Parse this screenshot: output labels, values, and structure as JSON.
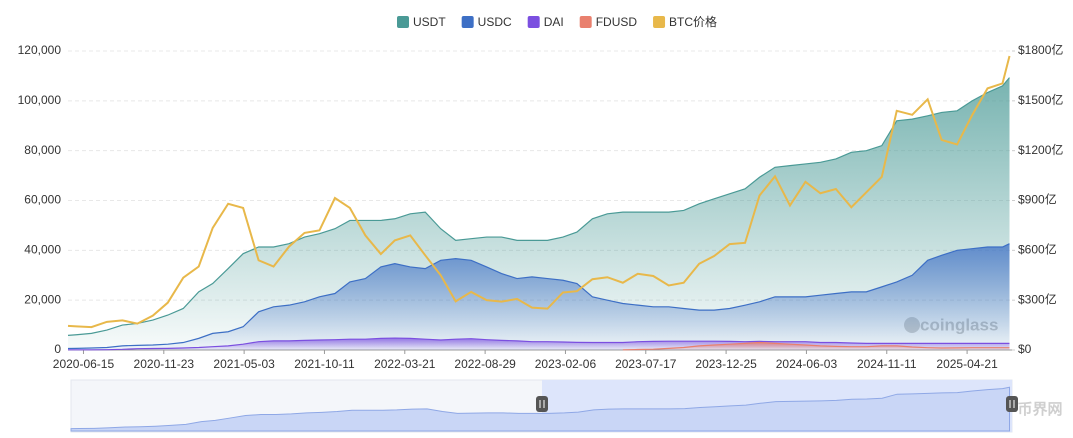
{
  "chart_data": {
    "type": "area",
    "watermark": "coinglass",
    "source_logo": "币界网",
    "x": [
      "2020-05-15",
      "2020-06-01",
      "2020-07-01",
      "2020-08-01",
      "2020-09-01",
      "2020-10-01",
      "2020-11-01",
      "2020-12-01",
      "2021-01-01",
      "2021-02-01",
      "2021-03-01",
      "2021-04-01",
      "2021-05-01",
      "2021-06-01",
      "2021-07-01",
      "2021-08-01",
      "2021-09-01",
      "2021-10-01",
      "2021-11-01",
      "2021-12-01",
      "2022-01-01",
      "2022-02-01",
      "2022-03-01",
      "2022-04-01",
      "2022-05-01",
      "2022-06-01",
      "2022-07-01",
      "2022-08-01",
      "2022-09-01",
      "2022-10-01",
      "2022-11-01",
      "2022-12-01",
      "2023-01-01",
      "2023-02-01",
      "2023-03-01",
      "2023-04-01",
      "2023-05-01",
      "2023-06-01",
      "2023-07-01",
      "2023-08-01",
      "2023-09-01",
      "2023-10-01",
      "2023-11-01",
      "2023-12-01",
      "2024-01-01",
      "2024-02-01",
      "2024-03-01",
      "2024-04-01",
      "2024-05-01",
      "2024-06-01",
      "2024-07-01",
      "2024-08-01",
      "2024-09-01",
      "2024-10-01",
      "2024-11-01",
      "2024-12-01",
      "2025-01-01",
      "2025-02-01",
      "2025-03-01",
      "2025-04-01",
      "2025-05-01",
      "2025-06-01",
      "2025-07-01",
      "2025-07-15"
    ],
    "xlim": [
      "2020-05-15",
      "2025-07-20"
    ],
    "xticks": [
      "2020-06-15",
      "2020-11-23",
      "2021-05-03",
      "2021-10-11",
      "2022-03-21",
      "2022-08-29",
      "2023-02-06",
      "2023-07-17",
      "2023-12-25",
      "2024-06-03",
      "2024-11-11",
      "2025-04-21"
    ],
    "ylim": [
      0,
      120000
    ],
    "yticks": [
      0,
      {
        "value": 20000,
        "label": "20,000"
      },
      {
        "value": 40000,
        "label": "40,000"
      },
      {
        "value": 60000,
        "label": "60,000"
      },
      {
        "value": 80000,
        "label": "80,000"
      },
      {
        "value": 100000,
        "label": "100,000"
      },
      {
        "value": 120000,
        "label": "120,000"
      }
    ],
    "y2lim": [
      0,
      1800
    ],
    "y2ticks": [
      {
        "value": 0,
        "label": "$0"
      },
      {
        "value": 300,
        "label": "$300亿"
      },
      {
        "value": 600,
        "label": "$600亿"
      },
      {
        "value": 900,
        "label": "$900亿"
      },
      {
        "value": 1200,
        "label": "$1200亿"
      },
      {
        "value": 1500,
        "label": "$1500亿"
      },
      {
        "value": 1800,
        "label": "$1800亿"
      }
    ],
    "grid": true,
    "legend": "top",
    "series": [
      {
        "name": "USDT",
        "color": "#4a9a96",
        "axis": "y2",
        "values": [
          88,
          92,
          100,
          120,
          150,
          160,
          180,
          210,
          250,
          350,
          400,
          490,
          580,
          620,
          620,
          640,
          680,
          700,
          730,
          780,
          780,
          780,
          790,
          820,
          830,
          730,
          660,
          670,
          680,
          680,
          660,
          660,
          660,
          680,
          710,
          790,
          820,
          830,
          830,
          830,
          830,
          840,
          880,
          910,
          940,
          970,
          1040,
          1100,
          1110,
          1120,
          1130,
          1150,
          1190,
          1200,
          1230,
          1380,
          1390,
          1410,
          1430,
          1440,
          1500,
          1550,
          1590,
          1640
        ]
      },
      {
        "name": "USDC",
        "color": "#3d6fc5",
        "axis": "y2",
        "values": [
          9,
          10,
          12,
          15,
          25,
          28,
          30,
          35,
          45,
          70,
          100,
          110,
          140,
          230,
          260,
          270,
          290,
          320,
          340,
          410,
          430,
          500,
          520,
          500,
          490,
          540,
          550,
          540,
          500,
          460,
          430,
          440,
          430,
          420,
          400,
          320,
          300,
          280,
          270,
          260,
          260,
          250,
          240,
          240,
          250,
          270,
          290,
          320,
          320,
          320,
          330,
          340,
          350,
          350,
          380,
          410,
          450,
          540,
          570,
          600,
          610,
          620,
          620,
          640
        ]
      },
      {
        "name": "DAI",
        "color": "#7b4fe0",
        "axis": "y2",
        "values": [
          1,
          1,
          1,
          2,
          4,
          8,
          9,
          10,
          12,
          15,
          20,
          25,
          35,
          50,
          55,
          55,
          58,
          60,
          62,
          65,
          65,
          70,
          72,
          70,
          65,
          60,
          65,
          68,
          62,
          58,
          55,
          50,
          50,
          48,
          46,
          45,
          45,
          45,
          50,
          52,
          53,
          53,
          53,
          53,
          52,
          50,
          52,
          50,
          50,
          50,
          45,
          45,
          42,
          40,
          40,
          40,
          40,
          40,
          40,
          40,
          40,
          40,
          40,
          40
        ]
      },
      {
        "name": "FDUSD",
        "color": "#e9806e",
        "axis": "y2",
        "values": [
          null,
          null,
          null,
          null,
          null,
          null,
          null,
          null,
          null,
          null,
          null,
          null,
          null,
          null,
          null,
          null,
          null,
          null,
          null,
          null,
          null,
          null,
          null,
          null,
          null,
          null,
          null,
          null,
          null,
          null,
          null,
          null,
          null,
          null,
          null,
          null,
          null,
          1,
          3,
          5,
          10,
          15,
          25,
          30,
          35,
          40,
          45,
          40,
          35,
          30,
          25,
          22,
          20,
          20,
          25,
          25,
          18,
          14,
          12,
          13,
          14,
          14,
          14,
          14
        ]
      },
      {
        "name": "BTC价格",
        "color": "#e8b84a",
        "axis": "y",
        "type": "line",
        "values": [
          9700,
          9500,
          9200,
          11300,
          11900,
          10600,
          13800,
          19000,
          29000,
          33500,
          49000,
          58700,
          57000,
          36000,
          33500,
          41500,
          47000,
          48000,
          61000,
          57000,
          46000,
          38500,
          44000,
          46000,
          38000,
          30000,
          19500,
          23300,
          20000,
          19400,
          20500,
          17000,
          16600,
          23100,
          23600,
          28400,
          29200,
          27000,
          30600,
          29700,
          25900,
          27000,
          34600,
          37700,
          42500,
          43000,
          62000,
          69700,
          58000,
          67500,
          62900,
          64600,
          57300,
          63300,
          69500,
          96000,
          94400,
          100600,
          84300,
          82500,
          94200,
          105000,
          107000,
          118000
        ]
      }
    ]
  }
}
